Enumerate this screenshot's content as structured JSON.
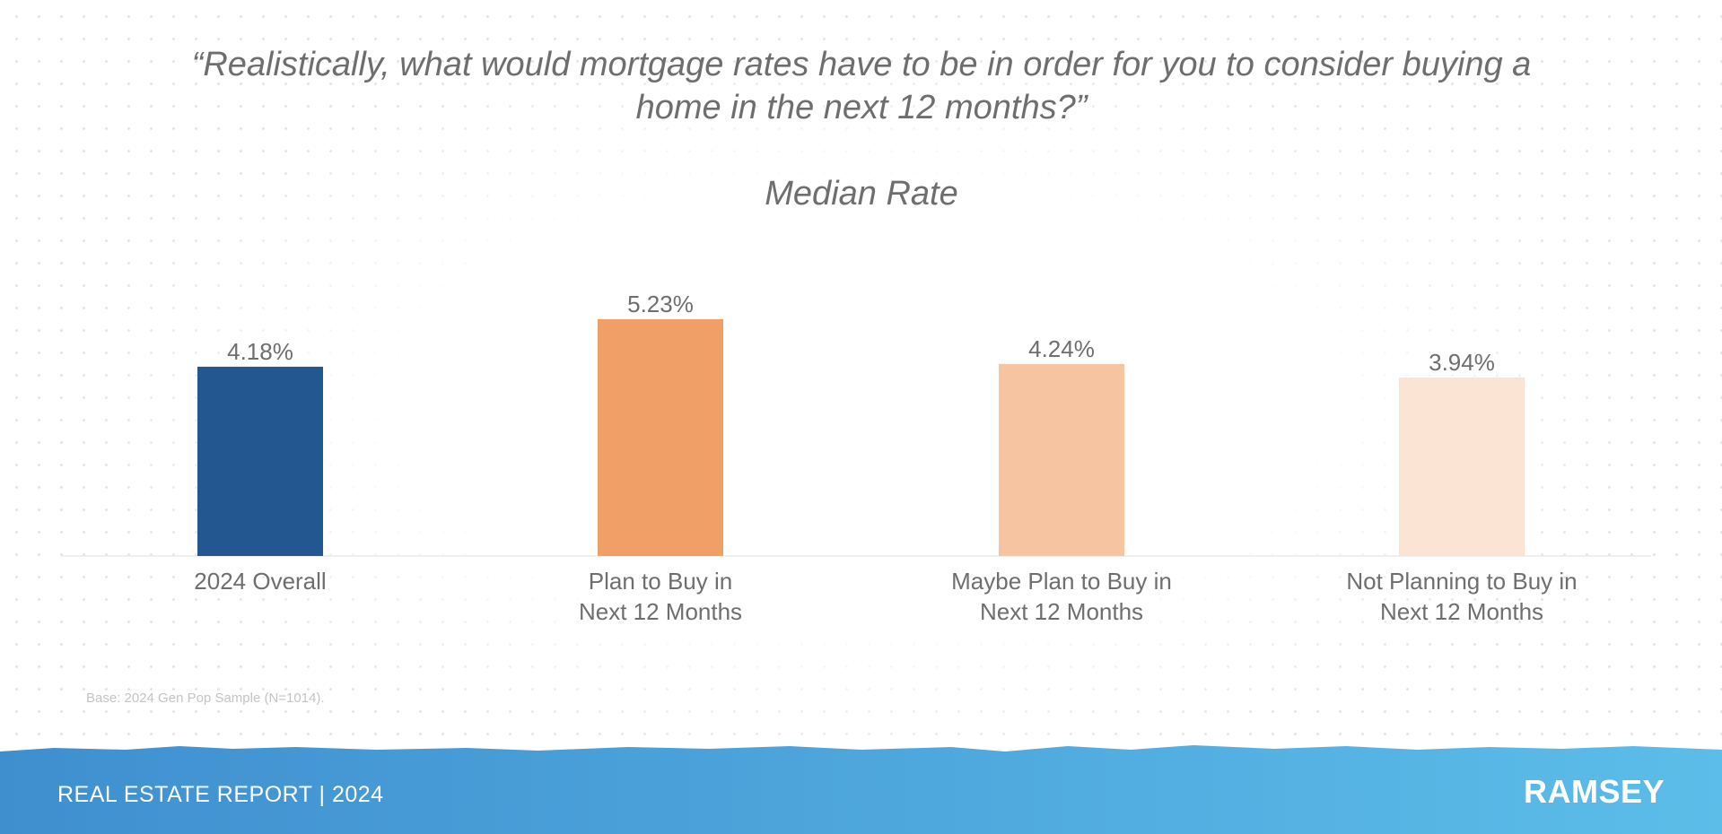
{
  "chart_data": {
    "type": "bar",
    "title": "“Realistically, what would mortgage rates have to be in order for you to consider buying a home in the next 12 months?”",
    "subtitle": "Median Rate",
    "categories": [
      [
        "2024 Overall"
      ],
      [
        "Plan to Buy in",
        "Next 12 Months"
      ],
      [
        "Maybe Plan to Buy in",
        "Next 12 Months"
      ],
      [
        "Not Planning to Buy in",
        "Next 12 Months"
      ]
    ],
    "values": [
      4.18,
      5.23,
      4.24,
      3.94
    ],
    "data_labels": [
      "4.18%",
      "5.23%",
      "4.24%",
      "3.94%"
    ],
    "colors": [
      "#22578f",
      "#f0a066",
      "#f6c4a0",
      "#fbe4d4"
    ],
    "ylim": [
      0,
      6.5
    ],
    "grid": false,
    "legend": "none",
    "footnote": "Base: 2024 Gen Pop Sample (N=1014)."
  },
  "footer": {
    "label": "REAL ESTATE REPORT | 2024",
    "brand": "RAMSEY",
    "gradient": [
      "#3f8fcf",
      "#5cbde9"
    ]
  }
}
